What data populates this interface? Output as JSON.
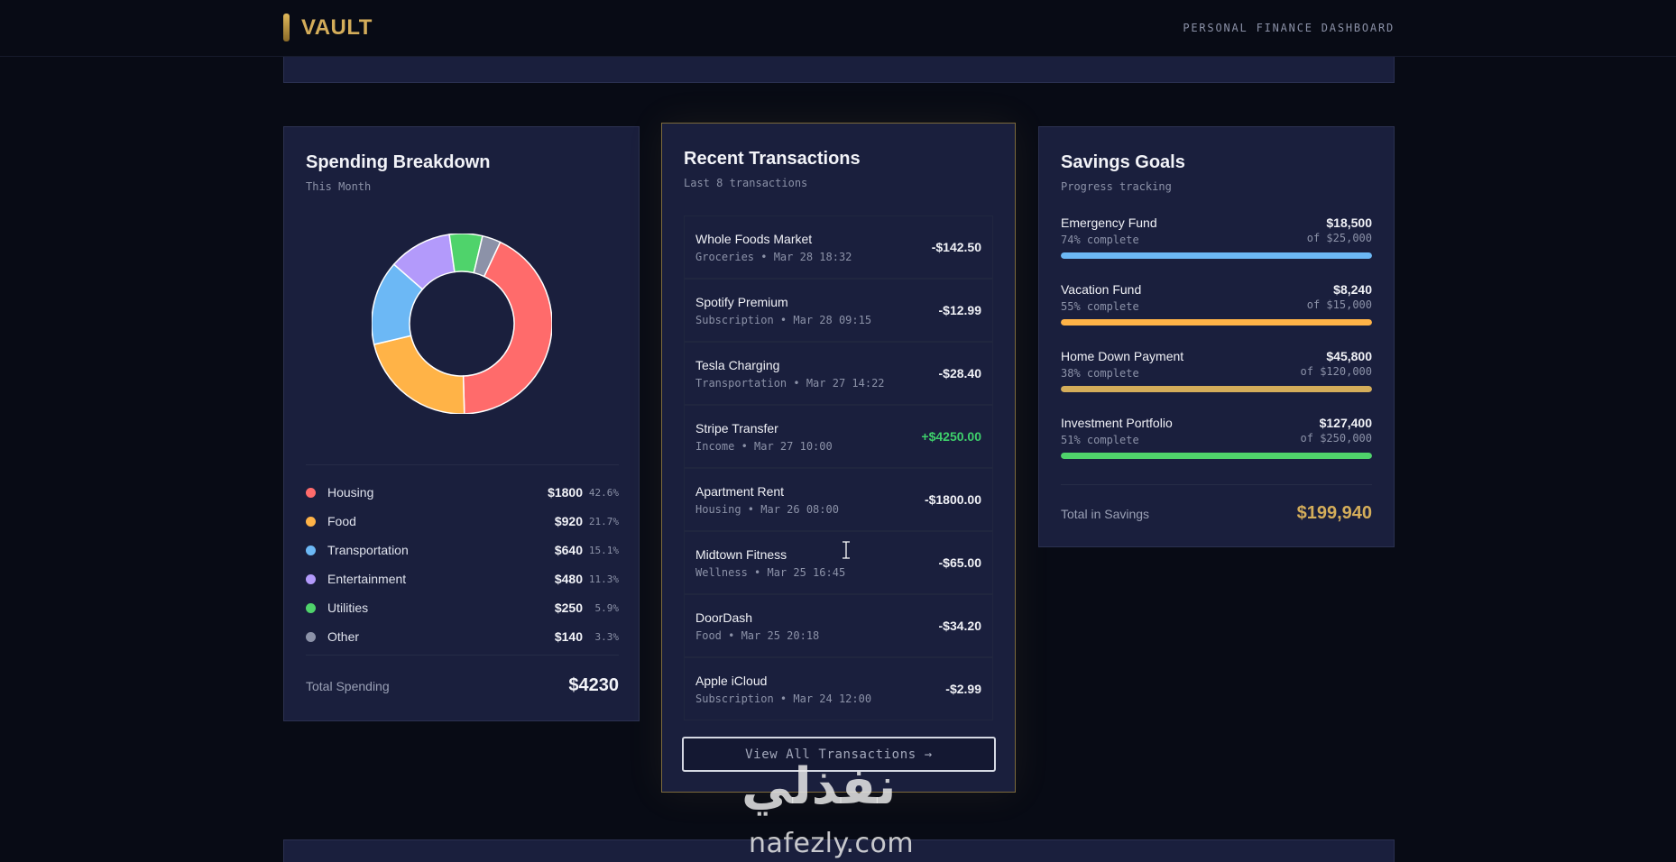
{
  "header": {
    "logo": "VAULT",
    "subtitle": "PERSONAL FINANCE DASHBOARD"
  },
  "spending": {
    "title": "Spending Breakdown",
    "subtitle": "This Month",
    "total_label": "Total Spending",
    "total_value": "$4230",
    "categories": [
      {
        "label": "Housing",
        "value": "$1800",
        "pct": "42.6%",
        "amount": 1800,
        "color": "#ff6b6b"
      },
      {
        "label": "Food",
        "value": "$920",
        "pct": "21.7%",
        "amount": 920,
        "color": "#ffb347"
      },
      {
        "label": "Transportation",
        "value": "$640",
        "pct": "15.1%",
        "amount": 640,
        "color": "#6cb8f5"
      },
      {
        "label": "Entertainment",
        "value": "$480",
        "pct": "11.3%",
        "amount": 480,
        "color": "#b39afb"
      },
      {
        "label": "Utilities",
        "value": "$250",
        "pct": "5.9%",
        "amount": 250,
        "color": "#4fd36b"
      },
      {
        "label": "Other",
        "value": "$140",
        "pct": "3.3%",
        "amount": 140,
        "color": "#8c92a8"
      }
    ]
  },
  "transactions": {
    "title": "Recent Transactions",
    "subtitle": "Last 8 transactions",
    "view_all": "View All Transactions →",
    "items": [
      {
        "name": "Whole Foods Market",
        "meta": "Groceries • Mar 28 18:32",
        "amount": "-$142.50",
        "positive": false
      },
      {
        "name": "Spotify Premium",
        "meta": "Subscription • Mar 28 09:15",
        "amount": "-$12.99",
        "positive": false
      },
      {
        "name": "Tesla Charging",
        "meta": "Transportation • Mar 27 14:22",
        "amount": "-$28.40",
        "positive": false
      },
      {
        "name": "Stripe Transfer",
        "meta": "Income • Mar 27 10:00",
        "amount": "+$4250.00",
        "positive": true
      },
      {
        "name": "Apartment Rent",
        "meta": "Housing • Mar 26 08:00",
        "amount": "-$1800.00",
        "positive": false
      },
      {
        "name": "Midtown Fitness",
        "meta": "Wellness • Mar 25 16:45",
        "amount": "-$65.00",
        "positive": false
      },
      {
        "name": "DoorDash",
        "meta": "Food • Mar 25 20:18",
        "amount": "-$34.20",
        "positive": false
      },
      {
        "name": "Apple iCloud",
        "meta": "Subscription • Mar 24 12:00",
        "amount": "-$2.99",
        "positive": false
      }
    ]
  },
  "savings": {
    "title": "Savings Goals",
    "subtitle": "Progress tracking",
    "total_label": "Total in Savings",
    "total_value": "$199,940",
    "goals": [
      {
        "name": "Emergency Fund",
        "pct_text": "74% complete",
        "amount": "$18,500",
        "target": "of $25,000",
        "progress": 0.74,
        "color": "#6cb8f5"
      },
      {
        "name": "Vacation Fund",
        "pct_text": "55% complete",
        "amount": "$8,240",
        "target": "of $15,000",
        "progress": 0.55,
        "color": "#ffb347"
      },
      {
        "name": "Home Down Payment",
        "pct_text": "38% complete",
        "amount": "$45,800",
        "target": "of $120,000",
        "progress": 0.38,
        "color": "#d4ad5a"
      },
      {
        "name": "Investment Portfolio",
        "pct_text": "51% complete",
        "amount": "$127,400",
        "target": "of $250,000",
        "progress": 0.51,
        "color": "#4fd36b"
      }
    ]
  },
  "watermark": {
    "arabic": "نفذلي",
    "latin": "nafezly.com"
  }
}
